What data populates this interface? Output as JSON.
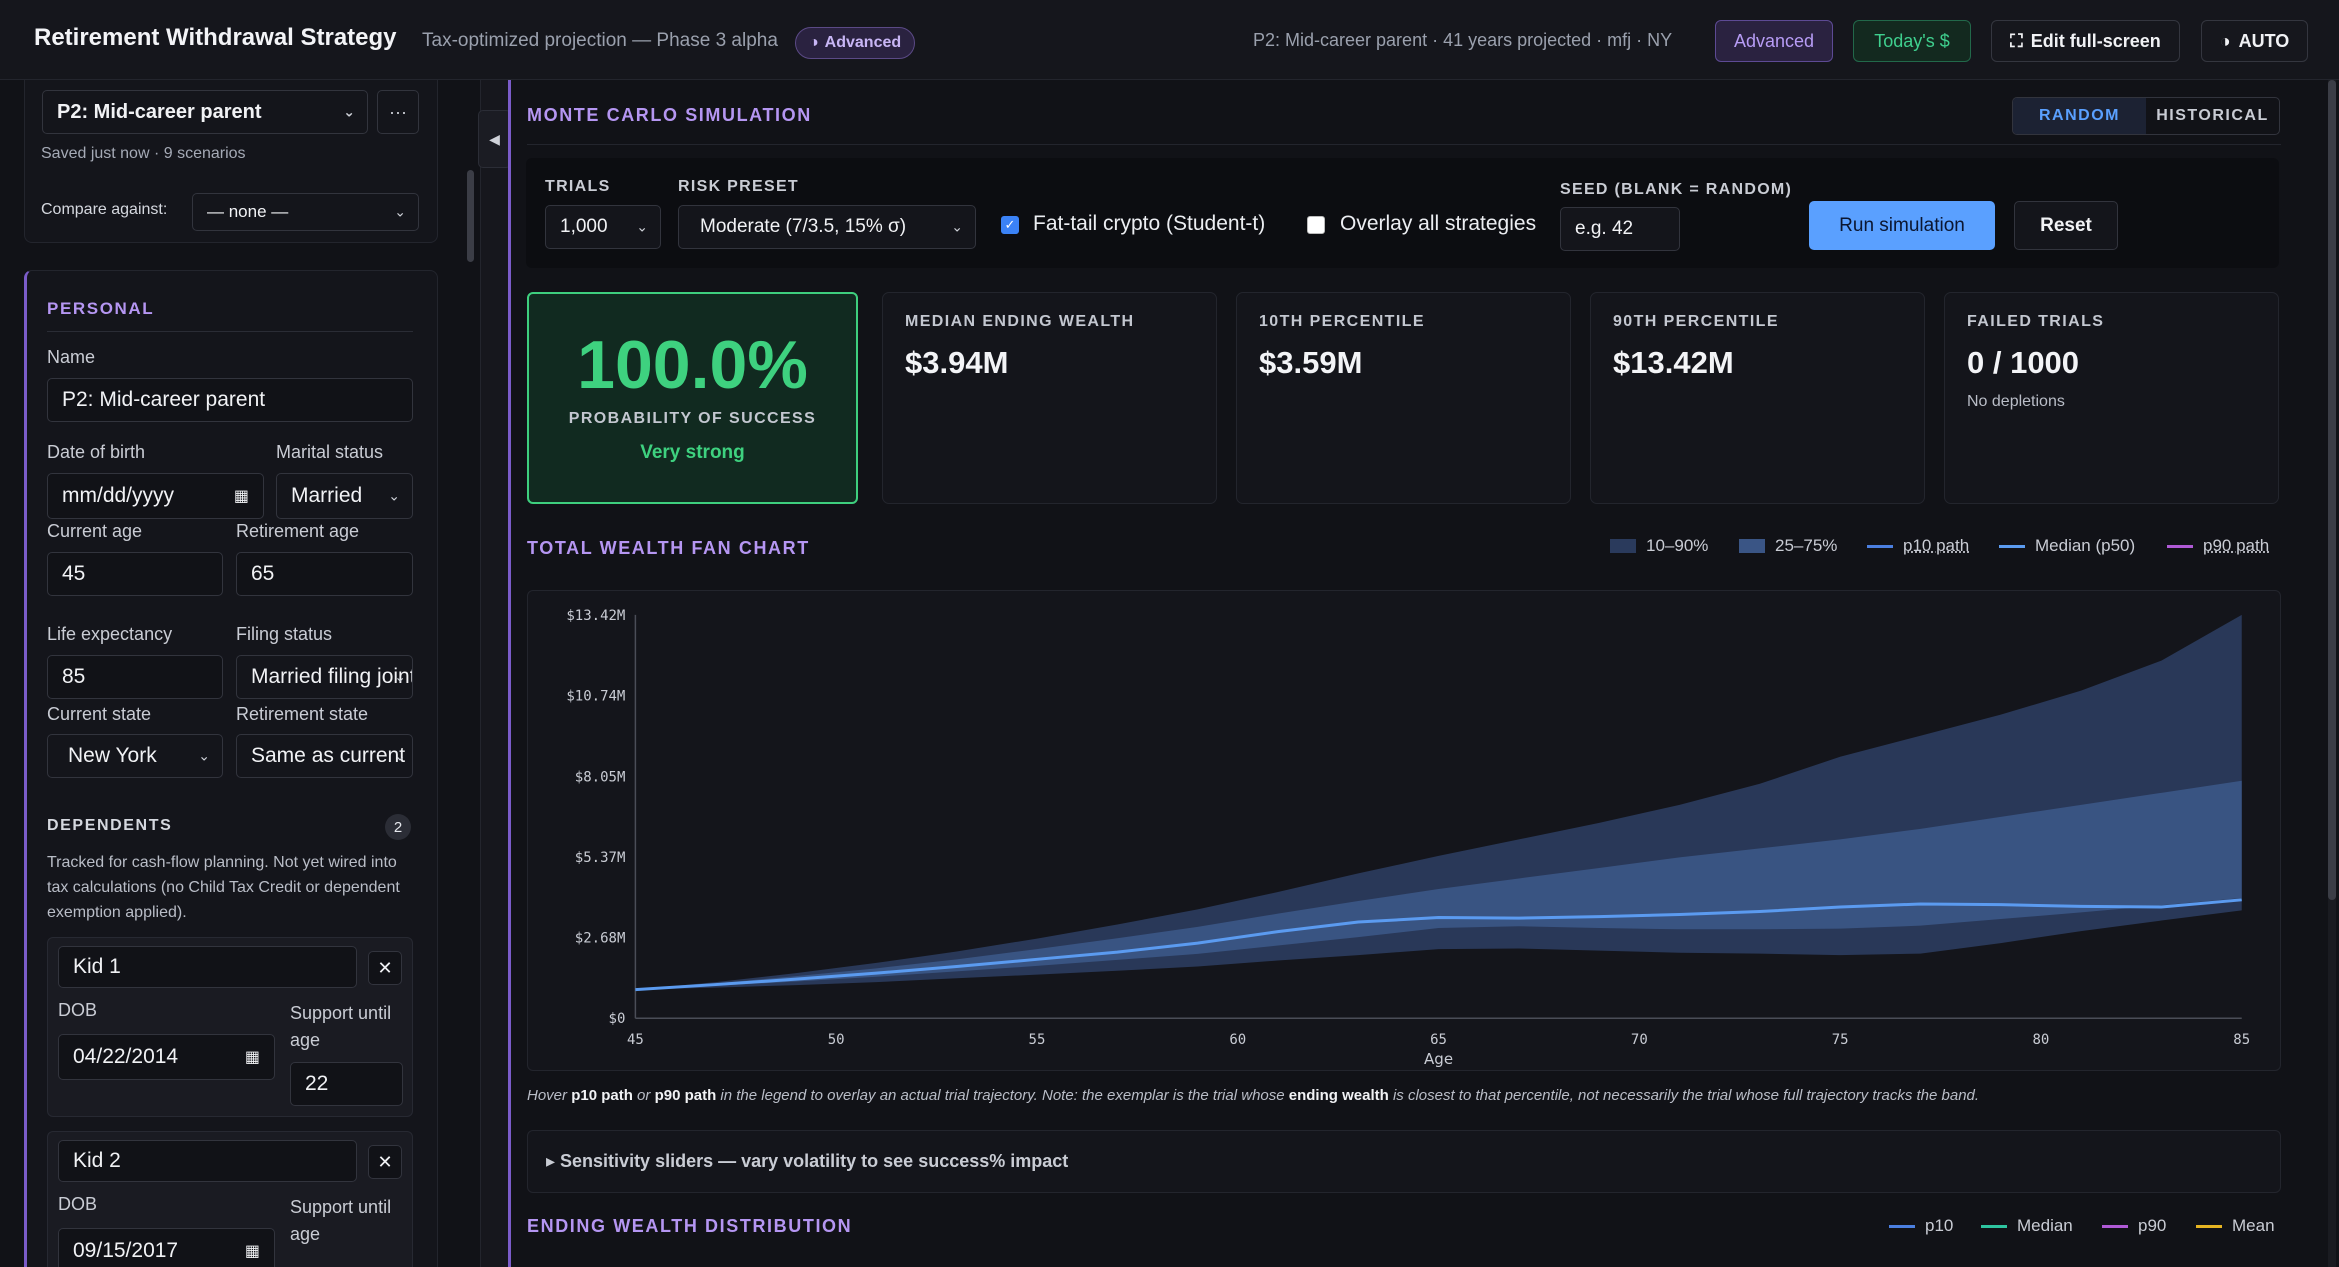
{
  "header": {
    "title": "Retirement Withdrawal Strategy",
    "subtitle": "Tax-optimized projection — Phase 3 alpha",
    "mode_pill": "Advanced",
    "meta": "P2: Mid-career parent · 41 years projected · mfj · NY",
    "advanced_btn": "Advanced",
    "today_btn": "Today's $",
    "edit_btn": "Edit full-screen",
    "auto_btn": "AUTO"
  },
  "sidebar": {
    "scenario": "P2: Mid-career parent",
    "more": "···",
    "saved": "Saved just now · 9 scenarios",
    "compare_label": "Compare against:",
    "compare_value": "— none —",
    "personal_title": "PERSONAL",
    "name_label": "Name",
    "name_value": "P2: Mid-career parent",
    "dob_label": "Date of birth",
    "dob_placeholder": "mm/dd/yyyy",
    "marital_label": "Marital status",
    "marital_value": "Married",
    "current_age_label": "Current age",
    "current_age": "45",
    "retirement_age_label": "Retirement age",
    "retirement_age": "65",
    "life_exp_label": "Life expectancy",
    "life_exp": "85",
    "filing_label": "Filing status",
    "filing_value": "Married filing jointly",
    "current_state_label": "Current state",
    "current_state": "New York",
    "retirement_state_label": "Retirement state",
    "retirement_state": "Same as current",
    "dependents_title": "DEPENDENTS",
    "dependents_count": "2",
    "dependents_note": "Tracked for cash-flow planning. Not yet wired into tax calculations (no Child Tax Credit or dependent exemption applied).",
    "dob_short": "DOB",
    "support_label": "Support until age",
    "kids": [
      {
        "name": "Kid 1",
        "dob": "04/22/2014",
        "support": "22"
      },
      {
        "name": "Kid 2",
        "dob": "09/15/2017",
        "support": ""
      }
    ]
  },
  "monte_carlo": {
    "title": "MONTE CARLO SIMULATION",
    "toggle_random": "RANDOM",
    "toggle_historical": "HISTORICAL",
    "trials_label": "TRIALS",
    "trials_value": "1,000",
    "risk_label": "RISK PRESET",
    "risk_value": "Moderate (7/3.5, 15% σ)",
    "fat_tail_label": "Fat-tail crypto (Student-t)",
    "overlay_label": "Overlay all strategies",
    "seed_label": "SEED (BLANK = RANDOM)",
    "seed_placeholder": "e.g. 42",
    "run_btn": "Run simulation",
    "reset_btn": "Reset"
  },
  "stats": {
    "success_pct": "100.0%",
    "success_label": "PROBABILITY OF SUCCESS",
    "success_rating": "Very strong",
    "median_label": "MEDIAN ENDING WEALTH",
    "median_value": "$3.94M",
    "p10_label": "10TH PERCENTILE",
    "p10_value": "$3.59M",
    "p90_label": "90TH PERCENTILE",
    "p90_value": "$13.42M",
    "failed_label": "FAILED TRIALS",
    "failed_value": "0 / 1000",
    "failed_sub": "No depletions"
  },
  "fan_chart": {
    "title": "TOTAL WEALTH FAN CHART",
    "legend": {
      "band_outer": "10–90%",
      "band_inner": "25–75%",
      "p10_path": "p10 path",
      "median": "Median (p50)",
      "p90_path": "p90 path"
    },
    "hint_parts": [
      "Hover ",
      "p10 path",
      " or ",
      "p90 path",
      " in the legend to overlay an actual trial trajectory. Note: the exemplar is the trial whose ",
      "ending wealth",
      " is closest to that percentile, not necessarily the trial whose full trajectory tracks the band."
    ]
  },
  "sensitivity_label": "▸ Sensitivity sliders — vary volatility to see success% impact",
  "distribution": {
    "title": "ENDING WEALTH DISTRIBUTION",
    "legend": [
      "p10",
      "Median",
      "p90",
      "Mean"
    ]
  },
  "colors": {
    "accent_purple": "#b596f2",
    "success_green": "#3ed17f",
    "blue": "#5aa0ff",
    "band_outer": "#2a3a5c",
    "band_inner": "#3a5585",
    "median_line": "#5b9bf0",
    "p90_line": "#b05ad6",
    "mean_line": "#e6b422",
    "dist_median": "#2ec4a0"
  },
  "chart_data": {
    "type": "area",
    "title": "TOTAL WEALTH FAN CHART",
    "xlabel": "Age",
    "ylabel": "",
    "x_ticks": [
      45,
      50,
      55,
      60,
      65,
      70,
      75,
      80,
      85
    ],
    "y_ticks": [
      "$0",
      "$2.68M",
      "$5.37M",
      "$8.05M",
      "$10.74M",
      "$13.42M"
    ],
    "xlim": [
      45,
      85
    ],
    "ylim": [
      0,
      13.42
    ],
    "x": [
      45,
      47,
      49,
      51,
      53,
      55,
      57,
      59,
      61,
      63,
      65,
      67,
      69,
      71,
      73,
      75,
      77,
      79,
      81,
      83,
      85
    ],
    "series": [
      {
        "name": "p10",
        "values": [
          0.95,
          1.02,
          1.1,
          1.2,
          1.33,
          1.45,
          1.58,
          1.72,
          1.92,
          2.1,
          2.3,
          2.32,
          2.25,
          2.18,
          2.15,
          2.1,
          2.15,
          2.5,
          2.9,
          3.25,
          3.59
        ]
      },
      {
        "name": "p25",
        "values": [
          0.95,
          1.08,
          1.22,
          1.38,
          1.56,
          1.74,
          1.94,
          2.14,
          2.42,
          2.7,
          3.0,
          3.06,
          3.0,
          2.96,
          2.96,
          2.98,
          3.08,
          3.3,
          3.52,
          3.76,
          4.0
        ]
      },
      {
        "name": "Median (p50)",
        "values": [
          0.95,
          1.12,
          1.3,
          1.5,
          1.72,
          1.96,
          2.2,
          2.5,
          2.88,
          3.2,
          3.35,
          3.33,
          3.38,
          3.45,
          3.55,
          3.7,
          3.8,
          3.78,
          3.72,
          3.7,
          3.94
        ]
      },
      {
        "name": "p75",
        "values": [
          0.95,
          1.16,
          1.4,
          1.66,
          1.96,
          2.3,
          2.66,
          3.04,
          3.48,
          3.9,
          4.3,
          4.65,
          5.0,
          5.35,
          5.65,
          5.95,
          6.3,
          6.7,
          7.1,
          7.5,
          7.9
        ]
      },
      {
        "name": "p90",
        "values": [
          0.95,
          1.2,
          1.5,
          1.84,
          2.22,
          2.65,
          3.12,
          3.62,
          4.2,
          4.82,
          5.4,
          5.95,
          6.5,
          7.1,
          7.8,
          8.7,
          9.4,
          10.1,
          10.9,
          11.9,
          13.42
        ]
      }
    ],
    "legend": [
      "10–90%",
      "25–75%",
      "p10 path",
      "Median (p50)",
      "p90 path"
    ],
    "grid": false
  }
}
